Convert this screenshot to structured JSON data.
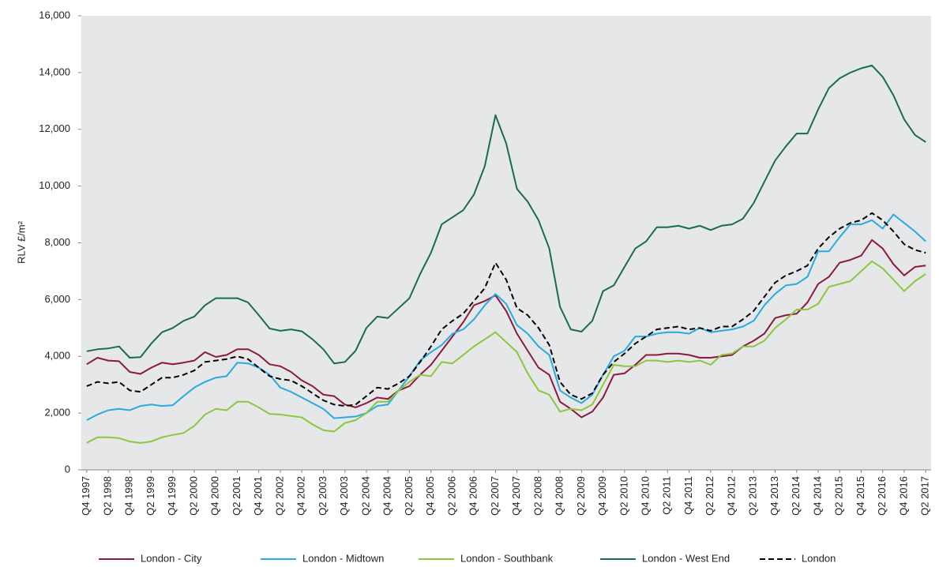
{
  "chart_data": {
    "type": "line",
    "y_label": "RLV £/m²",
    "ylim": [
      0,
      16000
    ],
    "yticks": [
      0,
      {
        "value": 2000,
        "label": "2,000"
      },
      {
        "value": 4000,
        "label": "4,000"
      },
      {
        "value": 6000,
        "label": "6,000"
      },
      {
        "value": 8000,
        "label": "8,000"
      },
      {
        "value": 10000,
        "label": "10,000"
      },
      {
        "value": 12000,
        "label": "12,000"
      },
      {
        "value": 14000,
        "label": "14,000"
      },
      {
        "value": 16000,
        "label": "16,000"
      }
    ],
    "grid": false,
    "legend": "bottom",
    "categories": [
      "Q4 1997",
      null,
      "Q2 1998",
      null,
      "Q4 1998",
      null,
      "Q2 1999",
      null,
      "Q4 1999",
      null,
      "Q2 2000",
      null,
      "Q4 2000",
      null,
      "Q2 2001",
      null,
      "Q4 2001",
      null,
      "Q2 2002",
      null,
      "Q4 2002",
      null,
      "Q2 2003",
      null,
      "Q4 2003",
      null,
      "Q2 2004",
      null,
      "Q4 2004",
      null,
      "Q2 2005",
      null,
      "Q4 2005",
      null,
      "Q2 2006",
      null,
      "Q4 2006",
      null,
      "Q2 2007",
      null,
      "Q4 2007",
      null,
      "Q2 2008",
      null,
      "Q4 2008",
      null,
      "Q2 2009",
      null,
      "Q4 2009",
      null,
      "Q2 2010",
      null,
      "Q4 2010",
      null,
      "Q2 2011",
      null,
      "Q4 2011",
      null,
      "Q2 2012",
      null,
      "Q4 2012",
      null,
      "Q2 2013",
      null,
      "Q4 2013",
      null,
      "Q2 2014",
      null,
      "Q4 2014",
      null,
      "Q2 2015",
      null,
      "Q4 2015",
      null,
      "Q2 2016",
      null,
      "Q4 2016",
      null,
      "Q2 2017"
    ],
    "series": [
      {
        "name": "London - City",
        "color": "#8b1a3e",
        "dashed": false,
        "values": [
          3720,
          3950,
          3850,
          3830,
          3450,
          3380,
          3600,
          3780,
          3720,
          3780,
          3850,
          4150,
          3980,
          4050,
          4250,
          4250,
          4050,
          3720,
          3650,
          3450,
          3150,
          2950,
          2650,
          2600,
          2300,
          2200,
          2350,
          2550,
          2500,
          2800,
          2950,
          3350,
          3700,
          4200,
          4700,
          5200,
          5800,
          5950,
          6150,
          5600,
          4800,
          4200,
          3600,
          3350,
          2400,
          2150,
          1850,
          2050,
          2550,
          3350,
          3400,
          3700,
          4050,
          4050,
          4100,
          4100,
          4050,
          3950,
          3950,
          4000,
          4050,
          4350,
          4550,
          4800,
          5350,
          5450,
          5500,
          5900,
          6550,
          6800,
          7300,
          7400,
          7550,
          8100,
          7800,
          7250,
          6850,
          7150,
          7200
        ]
      },
      {
        "name": "London - Midtown",
        "color": "#29abe2",
        "dashed": false,
        "values": [
          1750,
          1950,
          2100,
          2150,
          2100,
          2250,
          2300,
          2250,
          2280,
          2600,
          2900,
          3100,
          3250,
          3300,
          3780,
          3750,
          3600,
          3350,
          2900,
          2750,
          2550,
          2350,
          2150,
          1820,
          1850,
          1880,
          2000,
          2250,
          2300,
          2800,
          3300,
          3850,
          4150,
          4400,
          4800,
          4950,
          5300,
          5800,
          6200,
          5850,
          5100,
          4800,
          4350,
          4050,
          2800,
          2550,
          2350,
          2650,
          3350,
          4000,
          4200,
          4700,
          4700,
          4800,
          4850,
          4850,
          4800,
          5000,
          4850,
          4900,
          4950,
          5050,
          5250,
          5800,
          6200,
          6500,
          6550,
          6800,
          7700,
          7700,
          8200,
          8650,
          8650,
          8800,
          8500,
          9000,
          8700,
          8400,
          8050
        ]
      },
      {
        "name": "London - Southbank",
        "color": "#8dc63f",
        "dashed": false,
        "values": [
          950,
          1150,
          1150,
          1120,
          1000,
          950,
          1000,
          1150,
          1230,
          1300,
          1550,
          1950,
          2150,
          2100,
          2400,
          2400,
          2200,
          1970,
          1950,
          1900,
          1850,
          1600,
          1400,
          1350,
          1650,
          1750,
          2000,
          2400,
          2400,
          2800,
          3100,
          3350,
          3300,
          3800,
          3750,
          4050,
          4350,
          4600,
          4850,
          4500,
          4150,
          3400,
          2800,
          2650,
          2050,
          2150,
          2100,
          2300,
          3000,
          3700,
          3650,
          3650,
          3850,
          3850,
          3800,
          3850,
          3800,
          3850,
          3700,
          4050,
          4100,
          4350,
          4350,
          4550,
          5000,
          5300,
          5650,
          5650,
          5850,
          6450,
          6550,
          6650,
          7000,
          7350,
          7100,
          6700,
          6300,
          6650,
          6900
        ]
      },
      {
        "name": "London - West End",
        "color": "#1a6b50",
        "dashed": false,
        "values": [
          4180,
          4250,
          4280,
          4350,
          3950,
          3970,
          4450,
          4850,
          5000,
          5250,
          5400,
          5800,
          6050,
          6050,
          6050,
          5900,
          5450,
          4980,
          4900,
          4950,
          4880,
          4600,
          4250,
          3750,
          3800,
          4200,
          5000,
          5400,
          5350,
          5700,
          6050,
          6900,
          7650,
          8650,
          8900,
          9150,
          9700,
          10700,
          12500,
          11500,
          9900,
          9450,
          8800,
          7800,
          5750,
          4950,
          4870,
          5250,
          6300,
          6500,
          7150,
          7800,
          8050,
          8550,
          8550,
          8600,
          8500,
          8600,
          8450,
          8600,
          8650,
          8850,
          9400,
          10150,
          10900,
          11400,
          11850,
          11850,
          12700,
          13450,
          13800,
          14000,
          14150,
          14250,
          13850,
          13200,
          12350,
          11800,
          11550
        ]
      },
      {
        "name": "London",
        "color": "#000000",
        "dashed": true,
        "values": [
          2950,
          3100,
          3050,
          3100,
          2800,
          2750,
          3000,
          3250,
          3250,
          3350,
          3500,
          3800,
          3850,
          3900,
          4000,
          3900,
          3600,
          3300,
          3200,
          3150,
          2950,
          2700,
          2450,
          2300,
          2250,
          2300,
          2600,
          2900,
          2850,
          3050,
          3300,
          3800,
          4350,
          4950,
          5250,
          5500,
          5950,
          6400,
          7300,
          6700,
          5700,
          5450,
          5000,
          4400,
          3100,
          2650,
          2500,
          2700,
          3350,
          3800,
          4100,
          4450,
          4700,
          4950,
          5000,
          5050,
          4950,
          5000,
          4900,
          5050,
          5050,
          5300,
          5600,
          6100,
          6600,
          6850,
          7000,
          7200,
          7800,
          8200,
          8500,
          8700,
          8800,
          9050,
          8800,
          8400,
          7950,
          7750,
          7650
        ]
      }
    ]
  }
}
